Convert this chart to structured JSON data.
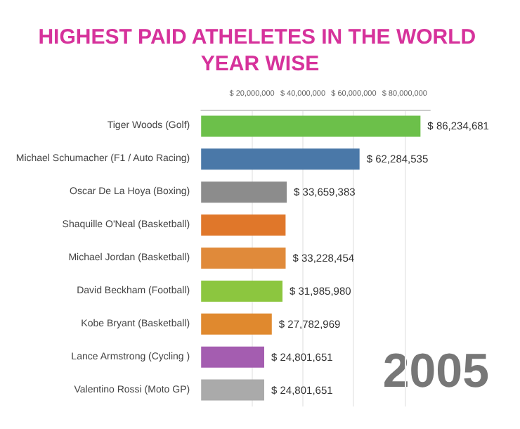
{
  "chart_data": {
    "type": "bar",
    "orientation": "horizontal",
    "title": "HIGHEST PAID ATHELETES IN THE WORLD YEAR WISE",
    "categories": [
      "Tiger Woods (Golf)",
      "Michael Schumacher (F1 / Auto Racing)",
      "Oscar De La Hoya (Boxing)",
      "Shaquille O'Neal (Basketball)",
      "Michael Jordan (Basketball)",
      "David Beckham (Football)",
      "Kobe Bryant (Basketball)",
      "Lance Armstrong (Cycling )",
      "Valentino Rossi (Moto GP)"
    ],
    "values": [
      86234681,
      62284535,
      33659383,
      33200000,
      33228454,
      31985980,
      27782969,
      24801651,
      24801651
    ],
    "value_labels": [
      "$ 86,234,681",
      "$ 62,284,535",
      "$ 33,659,383",
      null,
      "$ 33,228,454",
      "$ 31,985,980",
      "$ 27,782,969",
      "$ 24,801,651",
      "$ 24,801,651"
    ],
    "colors": [
      "#6cc04a",
      "#4a78a8",
      "#8c8c8c",
      "#e0772a",
      "#e08a3a",
      "#8cc63f",
      "#e0892e",
      "#a45db0",
      "#aaaaaa"
    ],
    "xlim": [
      0,
      90000000
    ],
    "xticks": [
      {
        "value": 20000000,
        "label": "$ 20,000,000"
      },
      {
        "value": 40000000,
        "label": "$ 40,000,000"
      },
      {
        "value": 60000000,
        "label": "$ 60,000,000"
      },
      {
        "value": 80000000,
        "label": "$ 80,000,000"
      }
    ],
    "grid": "x",
    "annotations": [
      "2005"
    ]
  }
}
